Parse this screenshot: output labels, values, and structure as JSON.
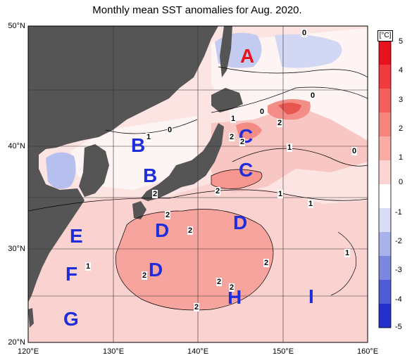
{
  "title": "Monthly mean SST anomalies for Aug. 2020.",
  "unit": "[°C]",
  "lat_labels": [
    "50°N",
    "40°N",
    "30°N",
    "20°N"
  ],
  "lon_labels": [
    "120°E",
    "130°E",
    "140°E",
    "150°E",
    "160°E"
  ],
  "colorbar": {
    "ticks": [
      "5",
      "4",
      "3",
      "2",
      "1",
      "0",
      "-1",
      "-2",
      "-3",
      "-4",
      "-5"
    ],
    "colors": [
      "#e8121e",
      "#f03a3e",
      "#f4605e",
      "#f7857f",
      "#f9aba6",
      "#fcd4d1",
      "#ffffff",
      "#d8dcf4",
      "#a9b2ea",
      "#7c88e0",
      "#4f5cd6",
      "#2430cc"
    ]
  },
  "regions": [
    {
      "label": "A",
      "color": "#e8121e"
    },
    {
      "label": "B",
      "color": "#1f2ddb"
    },
    {
      "label": "B",
      "color": "#1f2ddb"
    },
    {
      "label": "C",
      "color": "#1f2ddb"
    },
    {
      "label": "C",
      "color": "#1f2ddb"
    },
    {
      "label": "D",
      "color": "#1f2ddb"
    },
    {
      "label": "D",
      "color": "#1f2ddb"
    },
    {
      "label": "D",
      "color": "#1f2ddb"
    },
    {
      "label": "E",
      "color": "#1f2ddb"
    },
    {
      "label": "F",
      "color": "#1f2ddb"
    },
    {
      "label": "G",
      "color": "#1f2ddb"
    },
    {
      "label": "H",
      "color": "#1f2ddb"
    },
    {
      "label": "I",
      "color": "#1f2ddb"
    }
  ],
  "contour_labels": [
    "0",
    "0",
    "0",
    "0",
    "0",
    "1",
    "1",
    "1",
    "1",
    "1",
    "1",
    "1",
    "2",
    "2",
    "2",
    "2",
    "2",
    "2",
    "2",
    "2",
    "2",
    "2",
    "2",
    "2"
  ]
}
